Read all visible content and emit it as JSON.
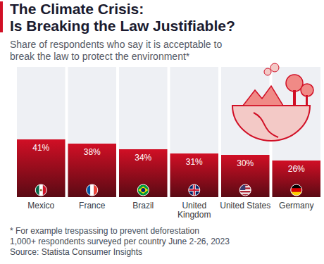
{
  "chart_data": {
    "type": "bar",
    "title": "The Climate Crisis: Is Breaking the Law Justifiable?",
    "subtitle": "Share of respondents who say it is acceptable to break the law to protect the environment*",
    "categories": [
      "Mexico",
      "France",
      "Brazil",
      "United Kingdom",
      "United States",
      "Germany"
    ],
    "values": [
      41,
      38,
      34,
      31,
      30,
      26
    ],
    "value_labels": [
      "41%",
      "38%",
      "34%",
      "31%",
      "30%",
      "26%"
    ],
    "color": "#d10f25",
    "ylim": [
      0,
      100
    ],
    "tick_labels": false,
    "grid": false,
    "data_labels": true,
    "notes": [
      "* For example trespassing to prevent deforestation",
      "1,000+ respondents surveyed per country June 2-26, 2023"
    ],
    "source": "Source: Statista Consumer Insights"
  }
}
